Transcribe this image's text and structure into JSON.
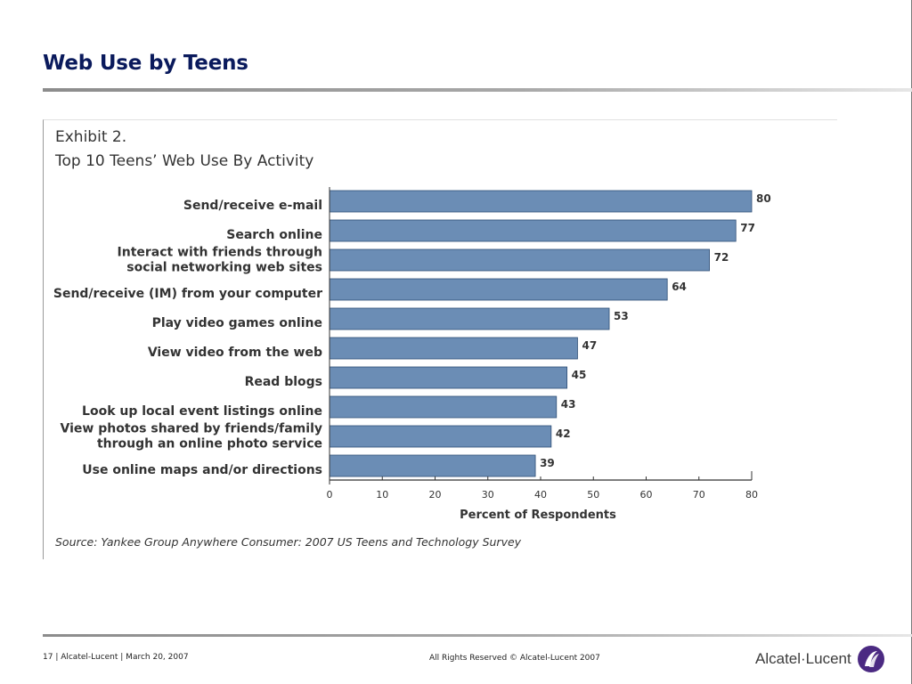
{
  "slide": {
    "title": "Web Use by Teens"
  },
  "chart_data": {
    "type": "bar",
    "orientation": "horizontal",
    "exhibit_label": "Exhibit 2.",
    "title": "Top 10 Teens’ Web Use By Activity",
    "categories": [
      [
        "Send/receive e-mail"
      ],
      [
        "Search online"
      ],
      [
        "Interact with friends through",
        "social networking web sites"
      ],
      [
        "Send/receive (IM) from your computer"
      ],
      [
        "Play video games online"
      ],
      [
        "View video from the web"
      ],
      [
        "Read blogs"
      ],
      [
        "Look up local event listings online"
      ],
      [
        "View photos shared by friends/family",
        "through an online photo service"
      ],
      [
        "Use online maps and/or directions"
      ]
    ],
    "values": [
      80,
      77,
      72,
      64,
      53,
      47,
      45,
      43,
      42,
      39
    ],
    "xlabel": "Percent of Respondents",
    "ylabel": "",
    "xlim": [
      0,
      80
    ],
    "xticks": [
      0,
      10,
      20,
      30,
      40,
      50,
      60,
      70,
      80
    ],
    "source": "Source: Yankee Group Anywhere Consumer: 2007 US Teens and Technology Survey",
    "bar_color": "#6b8db5",
    "bar_edge_color": "#2f4f76",
    "grid": false,
    "legend": "none"
  },
  "footer": {
    "left": "17 | Alcatel-Lucent | March 20, 2007",
    "center": "All Rights Reserved © Alcatel-Lucent 2007",
    "logo_text": "Alcatel·Lucent",
    "logo_icon": "alcatel-lucent-swirl-icon"
  }
}
